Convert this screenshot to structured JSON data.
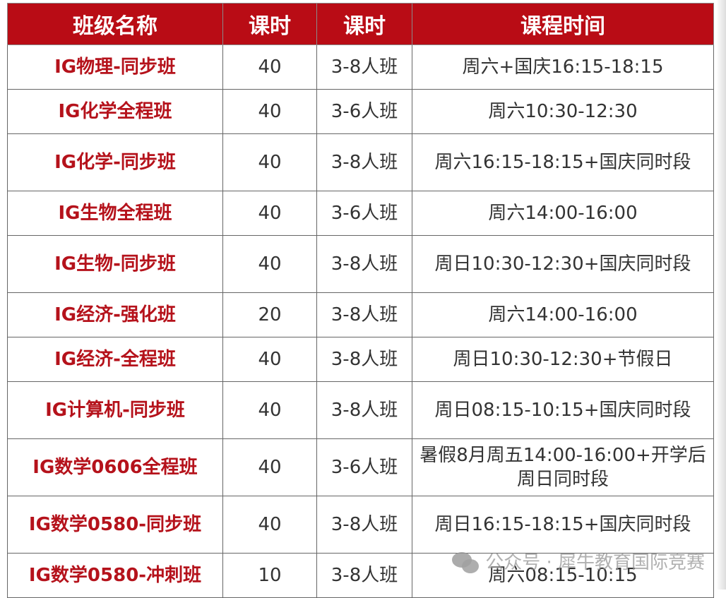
{
  "headers": [
    "班级名称",
    "课时",
    "课时",
    "课程时间"
  ],
  "rows": [
    {
      "name": "IG物理-同步班",
      "hours": "40",
      "size": "3-8人班",
      "time": "周六+国庆16:15-18:15"
    },
    {
      "name": "IG化学全程班",
      "hours": "40",
      "size": "3-6人班",
      "time": "周六10:30-12:30"
    },
    {
      "name": "IG化学-同步班",
      "hours": "40",
      "size": "3-8人班",
      "time": "周六16:15-18:15+国庆同时段"
    },
    {
      "name": "IG生物全程班",
      "hours": "40",
      "size": "3-6人班",
      "time": "周六14:00-16:00"
    },
    {
      "name": "IG生物-同步班",
      "hours": "40",
      "size": "3-8人班",
      "time": "周日10:30-12:30+国庆同时段"
    },
    {
      "name": "IG经济-强化班",
      "hours": "20",
      "size": "3-8人班",
      "time": "周六14:00-16:00"
    },
    {
      "name": "IG经济-全程班",
      "hours": "40",
      "size": "3-8人班",
      "time": "周日10:30-12:30+节假日"
    },
    {
      "name": "IG计算机-同步班",
      "hours": "40",
      "size": "3-8人班",
      "time": "周日08:15-10:15+国庆同时段"
    },
    {
      "name": "IG数学0606全程班",
      "hours": "40",
      "size": "3-6人班",
      "time": "暑假8月周五14:00-16:00+开学后周日同时段"
    },
    {
      "name": "IG数学0580-同步班",
      "hours": "40",
      "size": "3-8人班",
      "time": "周日16:15-18:15+国庆同时段"
    },
    {
      "name": "IG数学0580-冲刺班",
      "hours": "10",
      "size": "3-8人班",
      "time": "周六08:15-10:15"
    }
  ],
  "watermark": {
    "icon": "wechat-icon",
    "text": "公众号 · 犀牛教育国际竞赛"
  },
  "colors": {
    "header_bg": "#b90c15",
    "name_text": "#b5121b"
  }
}
